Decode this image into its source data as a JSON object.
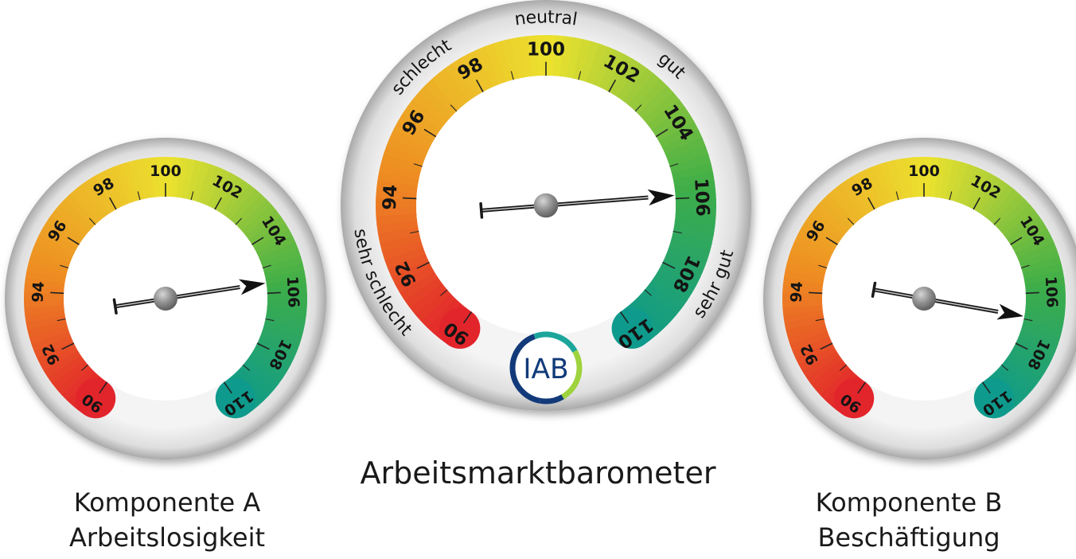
{
  "chart_data": [
    {
      "type": "gauge",
      "title": "Komponente A",
      "subtitle": "Arbeitslosigkeit",
      "scale": {
        "min": 90,
        "max": 110,
        "major_ticks": [
          90,
          92,
          94,
          96,
          98,
          100,
          102,
          104,
          106,
          108,
          110
        ]
      },
      "value": 105.6,
      "colors": {
        "low": "#e2242b",
        "mid": "#ece22e",
        "high": "#3fae48",
        "end": "#0e9a8c"
      }
    },
    {
      "type": "gauge",
      "title": "Arbeitsmarktbarometer",
      "scale": {
        "min": 90,
        "max": 110,
        "major_ticks": [
          90,
          92,
          94,
          96,
          98,
          100,
          102,
          104,
          106,
          108,
          110
        ]
      },
      "value": 105.9,
      "zone_labels": [
        "sehr schlecht",
        "schlecht",
        "neutral",
        "gut",
        "sehr gut"
      ],
      "logo": "IAB",
      "colors": {
        "low": "#e2242b",
        "mid": "#ece22e",
        "high": "#3fae48",
        "end": "#0e9a8c"
      }
    },
    {
      "type": "gauge",
      "title": "Komponente B",
      "subtitle": "Beschäftigung",
      "scale": {
        "min": 90,
        "max": 110,
        "major_ticks": [
          90,
          92,
          94,
          96,
          98,
          100,
          102,
          104,
          106,
          108,
          110
        ]
      },
      "value": 106.9,
      "colors": {
        "low": "#e2242b",
        "mid": "#ece22e",
        "high": "#3fae48",
        "end": "#0e9a8c"
      }
    }
  ]
}
